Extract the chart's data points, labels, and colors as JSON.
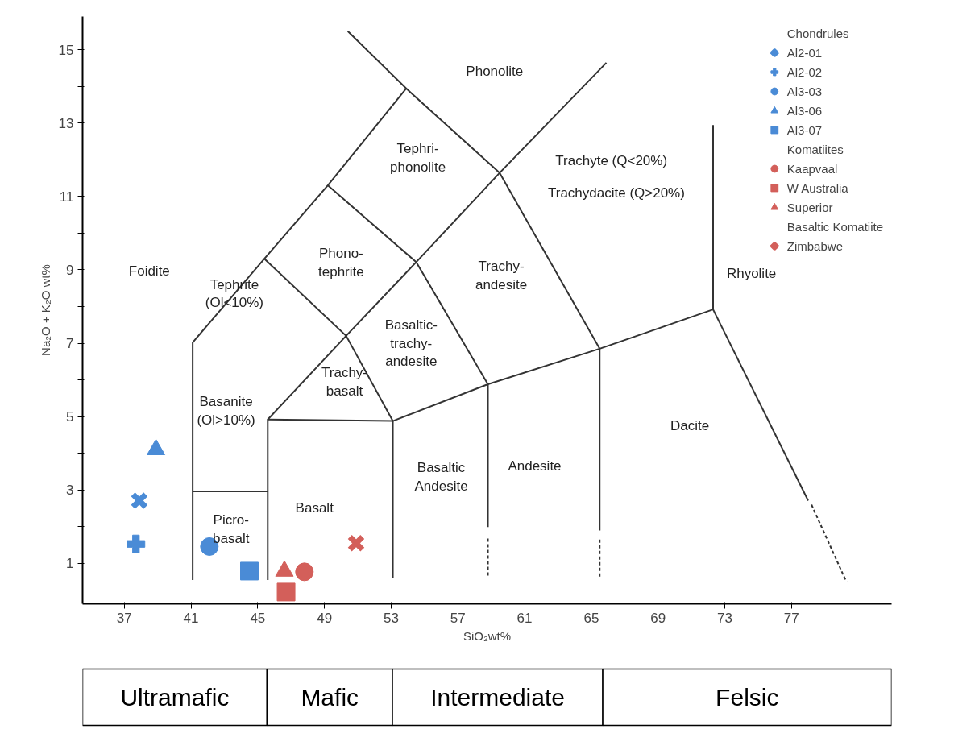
{
  "chart_data": [
    {
      "type": "scatter",
      "xlabel": "SiO₂wt%",
      "ylabel": "Na₂O + K₂O wt%",
      "xlim": [
        34.5,
        83
      ],
      "ylim": [
        -0.1,
        15.9
      ],
      "xticks": [
        37,
        41,
        45,
        49,
        53,
        57,
        61,
        65,
        69,
        73,
        77
      ],
      "yticks": [
        1,
        {
          "value": 2,
          "label": null
        },
        3,
        {
          "value": 4,
          "label": null
        },
        5,
        {
          "value": 6,
          "label": null
        },
        7,
        {
          "value": 8,
          "label": null
        },
        9,
        {
          "value": 10,
          "label": null
        },
        11,
        {
          "value": 12,
          "label": null
        },
        13,
        {
          "value": 14,
          "label": null
        },
        15
      ],
      "grid": false,
      "legend": "top right",
      "legend_title": [
        "Chondrules",
        "Komatiites",
        "Basaltic Komatiite"
      ],
      "series": [
        {
          "type": "line",
          "color": "#333333",
          "x": [
            41.1,
            41.1
          ],
          "values": [
            0.55,
            7.02
          ]
        },
        {
          "type": "line",
          "color": "#333333",
          "x": [
            41.1,
            45.4,
            49.2,
            53.9,
            50.4
          ],
          "values": [
            7.02,
            9.3,
            11.3,
            13.94,
            15.5
          ]
        },
        {
          "type": "line",
          "color": "#333333",
          "x": [
            53.9,
            59.5,
            65.9
          ],
          "values": [
            13.94,
            11.64,
            14.64
          ]
        },
        {
          "type": "line",
          "color": "#333333",
          "x": [
            59.5,
            54.5,
            50.3,
            45.4
          ],
          "values": [
            11.64,
            9.21,
            7.2,
            9.3
          ]
        },
        {
          "type": "line",
          "color": "#333333",
          "x": [
            49.2,
            54.5,
            58.8
          ],
          "values": [
            11.3,
            9.21,
            5.88
          ]
        },
        {
          "type": "line",
          "color": "#333333",
          "x": [
            59.5,
            65.5,
            65.5
          ],
          "values": [
            11.64,
            6.85,
            1.9
          ]
        },
        {
          "type": "line",
          "color": "#333333",
          "x": [
            65.5,
            65.5
          ],
          "values": [
            1.65,
            0.6
          ],
          "line_style": "dashed"
        },
        {
          "type": "line",
          "color": "#333333",
          "x": [
            50.3,
            53.1,
            53.1
          ],
          "values": [
            7.2,
            4.88,
            0.6
          ]
        },
        {
          "type": "line",
          "color": "#333333",
          "x": [
            50.3,
            45.6,
            45.6
          ],
          "values": [
            7.2,
            4.92,
            0.55
          ]
        },
        {
          "type": "line",
          "color": "#333333",
          "x": [
            45.6,
            53.1,
            58.8,
            65.5,
            72.3
          ],
          "values": [
            4.92,
            4.88,
            5.88,
            6.85,
            7.92
          ]
        },
        {
          "type": "line",
          "color": "#333333",
          "x": [
            41.1,
            45.6
          ],
          "values": [
            2.96,
            2.96
          ]
        },
        {
          "type": "line",
          "color": "#333333",
          "x": [
            58.8,
            58.8
          ],
          "values": [
            5.88,
            1.99
          ]
        },
        {
          "type": "line",
          "color": "#333333",
          "x": [
            58.8,
            58.8
          ],
          "values": [
            1.68,
            0.6
          ],
          "line_style": "dashed"
        },
        {
          "type": "line",
          "color": "#333333",
          "x": [
            72.3,
            72.3
          ],
          "values": [
            7.92,
            12.94
          ]
        },
        {
          "type": "line",
          "color": "#333333",
          "x": [
            72.3,
            78.0
          ],
          "values": [
            7.92,
            2.71
          ]
        },
        {
          "type": "line",
          "color": "#333333",
          "x": [
            78.2,
            80.3
          ],
          "values": [
            2.6,
            0.49
          ],
          "line_style": "dashed"
        },
        {
          "name": "Al2-01",
          "marker": "x",
          "color": "#4a8bd6",
          "x": [
            37.9
          ],
          "values": [
            2.71
          ]
        },
        {
          "name": "Al2-02",
          "marker": "cross",
          "color": "#4a8bd6",
          "x": [
            37.7
          ],
          "values": [
            1.53
          ]
        },
        {
          "name": "Al3-03",
          "marker": "circle",
          "color": "#4a8bd6",
          "x": [
            42.1
          ],
          "values": [
            1.46
          ]
        },
        {
          "name": "Al3-06",
          "marker": "triangle",
          "color": "#4a8bd6",
          "x": [
            38.9
          ],
          "values": [
            4.1
          ]
        },
        {
          "name": "Al3-07",
          "marker": "square",
          "color": "#4a8bd6",
          "x": [
            44.5
          ],
          "values": [
            0.79
          ]
        },
        {
          "name": "Kaapvaal",
          "marker": "circle",
          "color": "#d35f5a",
          "x": [
            47.8
          ],
          "values": [
            0.77
          ]
        },
        {
          "name": "W Australia",
          "marker": "square",
          "color": "#d35f5a",
          "x": [
            46.7
          ],
          "values": [
            0.22
          ]
        },
        {
          "name": "Superior",
          "marker": "triangle",
          "color": "#d35f5a",
          "x": [
            46.6
          ],
          "values": [
            0.79
          ]
        },
        {
          "name": "Zimbabwe",
          "marker": "x",
          "color": "#d35f5a",
          "x": [
            50.9
          ],
          "values": [
            1.55
          ]
        }
      ],
      "annotations": [
        "Phonolite",
        "Tephri-\nphonolite",
        "Trachyte (Q<20%)",
        "Trachydacite (Q>20%)",
        "Phono-\ntephrite",
        "Foidite",
        "Trachy-\nandesite",
        "Tephrite\n(Ol<10%)",
        "Rhyolite",
        "Basaltic-\ntrachy-\nandesite",
        "Basanite\n(Ol>10%)",
        "Trachy-\nbasalt",
        "Dacite",
        "Basaltic\nAndesite",
        "Andesite",
        "Picro-\nbasalt",
        "Basalt"
      ]
    },
    {
      "type": "other",
      "annotations": [
        "Ultramafic",
        "Mafic",
        "Intermediate",
        "Felsic"
      ]
    }
  ]
}
